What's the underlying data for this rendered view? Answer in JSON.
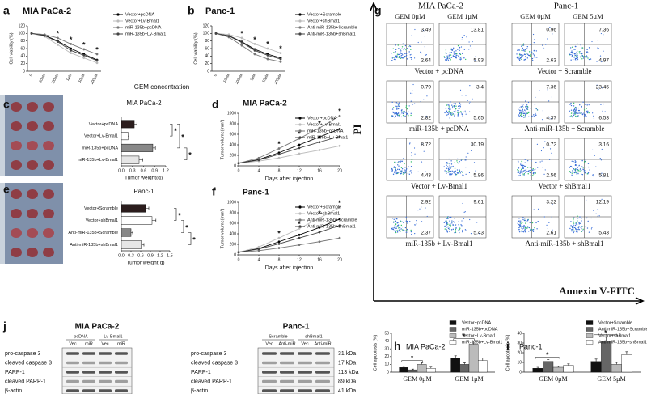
{
  "chart_data": [
    {
      "type": "line",
      "panel": "a",
      "title": "MIA PaCa-2",
      "categories": [
        "0",
        "10nM",
        "100nM",
        "1μM",
        "10μM",
        "100μM"
      ],
      "ylabel": "Cell viability (%)",
      "xlabel": "GEM concentration",
      "ylim": [
        0,
        120
      ],
      "yticks": [
        0,
        20,
        40,
        60,
        80,
        100,
        120
      ],
      "series": [
        {
          "name": "Vector+pcDNA",
          "color": "#000000",
          "values": [
            100,
            95,
            80,
            60,
            45,
            30
          ]
        },
        {
          "name": "Vector+Lv-Bmal1",
          "color": "#bbbbbb",
          "values": [
            100,
            92,
            70,
            48,
            35,
            22
          ]
        },
        {
          "name": "miR-135b+pcDNA",
          "color": "#777777",
          "values": [
            100,
            97,
            88,
            72,
            58,
            45
          ]
        },
        {
          "name": "miR-135b+Lv-Bmal1",
          "color": "#444444",
          "values": [
            100,
            94,
            78,
            55,
            42,
            28
          ]
        }
      ],
      "significance": [
        null,
        null,
        "*",
        "*",
        "*",
        "*"
      ]
    },
    {
      "type": "line",
      "panel": "b",
      "title": "Panc-1",
      "categories": [
        "0",
        "10nM",
        "100nM",
        "1μM",
        "10μM",
        "100μM"
      ],
      "ylabel": "Cell viability (%)",
      "ylim": [
        0,
        120
      ],
      "yticks": [
        0,
        20,
        40,
        60,
        80,
        100,
        120
      ],
      "series": [
        {
          "name": "Vector+Scramble",
          "color": "#000000",
          "values": [
            100,
            94,
            78,
            58,
            45,
            35
          ]
        },
        {
          "name": "Vector+shBmal1",
          "color": "#bbbbbb",
          "values": [
            100,
            97,
            88,
            72,
            60,
            48
          ]
        },
        {
          "name": "Anti-miR-135b+Scramble",
          "color": "#777777",
          "values": [
            100,
            90,
            68,
            45,
            32,
            25
          ]
        },
        {
          "name": "Anti-miR-135b+shBmal1",
          "color": "#444444",
          "values": [
            100,
            93,
            76,
            55,
            42,
            32
          ]
        }
      ],
      "significance": [
        null,
        null,
        "*",
        "*",
        "*",
        "*"
      ]
    },
    {
      "type": "hbar",
      "panel": "c",
      "title": "MIA PaCa-2",
      "categories": [
        "Vector+pcDNA",
        "Vector+Lv-Bmal1",
        "miR-135b+pcDNA",
        "miR-135b+Lv-Bmal1"
      ],
      "values": [
        0.35,
        0.18,
        0.85,
        0.48
      ],
      "errors": [
        0.07,
        0.03,
        0.07,
        0.1
      ],
      "colors": [
        "#2b1d1d",
        "#ffffff",
        "#888888",
        "#e6e6e6"
      ],
      "xlim": [
        0,
        1.2
      ],
      "xticks": [
        {
          "value": 0,
          "label": "0.0"
        },
        0.3,
        0.6,
        0.9,
        1.2
      ],
      "xlabel": "Tumor weight(g)",
      "significance": [
        "*",
        "*",
        "*"
      ]
    },
    {
      "type": "line",
      "panel": "d",
      "title": "MIA PaCa-2",
      "x": [
        0,
        4,
        8,
        12,
        16,
        20
      ],
      "xlim": [
        0,
        20
      ],
      "xticks": [
        0,
        4,
        8,
        12,
        16,
        20
      ],
      "ylim": [
        0,
        1000
      ],
      "yticks": [
        0,
        200,
        400,
        600,
        800,
        1000
      ],
      "ylabel": "Tumor volume(mm³)",
      "xlabel": "Days after injection",
      "series": [
        {
          "name": "Vector+pcDNA",
          "color": "#000000",
          "values": [
            50,
            120,
            250,
            400,
            550,
            700
          ]
        },
        {
          "name": "Vector+Lv-Bmal1",
          "color": "#bbbbbb",
          "values": [
            50,
            90,
            150,
            230,
            300,
            380
          ]
        },
        {
          "name": "miR-135b+pcDNA",
          "color": "#777777",
          "values": [
            50,
            150,
            330,
            520,
            720,
            950
          ]
        },
        {
          "name": "miR-135b+Lv-Bmal1",
          "color": "#444444",
          "values": [
            50,
            110,
            220,
            340,
            450,
            560
          ]
        }
      ],
      "significance": [
        null,
        null,
        "*",
        "*",
        "*",
        "*"
      ]
    },
    {
      "type": "hbar",
      "panel": "e",
      "title": "Panc-1",
      "categories": [
        "Vector+Scramble",
        "Vector+shBmal1",
        "Anti-miR-135b+Scramble",
        "Anti-miR-135b+shBmal1"
      ],
      "values": [
        0.75,
        0.95,
        0.3,
        0.62
      ],
      "errors": [
        0.1,
        0.12,
        0.05,
        0.08
      ],
      "colors": [
        "#2b1d1d",
        "#ffffff",
        "#888888",
        "#e6e6e6"
      ],
      "xlim": [
        0,
        1.5
      ],
      "xticks": [
        {
          "value": 0,
          "label": "0.0"
        },
        0.3,
        0.6,
        0.9,
        1.2,
        1.5
      ],
      "xlabel": "Tumor weight(g)",
      "significance": [
        "*",
        "*",
        "*"
      ]
    },
    {
      "type": "line",
      "panel": "f",
      "title": "Panc-1",
      "x": [
        0,
        4,
        8,
        12,
        16,
        20
      ],
      "xlim": [
        0,
        20
      ],
      "xticks": [
        0,
        4,
        8,
        12,
        16,
        20
      ],
      "ylim": [
        0,
        1000
      ],
      "yticks": [
        0,
        200,
        400,
        600,
        800,
        1000
      ],
      "ylabel": "Tumor volume(mm³)",
      "xlabel": "Days after injection",
      "series": [
        {
          "name": "Vector+Scramble",
          "color": "#000000",
          "values": [
            50,
            120,
            250,
            380,
            520,
            680
          ]
        },
        {
          "name": "Vector+shBmal1",
          "color": "#bbbbbb",
          "values": [
            50,
            150,
            320,
            500,
            700,
            900
          ]
        },
        {
          "name": "Anti-miR-135b+Scramble",
          "color": "#777777",
          "values": [
            50,
            80,
            130,
            190,
            250,
            320
          ]
        },
        {
          "name": "Anti-miR-135b+shBmal1",
          "color": "#444444",
          "values": [
            50,
            110,
            210,
            320,
            430,
            560
          ]
        }
      ],
      "significance": [
        null,
        null,
        "*",
        "*",
        "*",
        "*"
      ]
    },
    {
      "type": "grouped",
      "panel": "h",
      "title": "MIA PaCa-2",
      "categories": [
        "GEM 0μM",
        "GEM 1μM"
      ],
      "ylabel": "Cell apoptosis (%)",
      "ylim": [
        0,
        50
      ],
      "yticks": [
        0,
        10,
        20,
        30,
        40,
        50
      ],
      "series": [
        {
          "name": "Vector+pcDNA",
          "color": "#111111",
          "values": [
            6,
            18
          ],
          "errors": [
            1.5,
            3
          ]
        },
        {
          "name": "miR-135b+pcDNA",
          "color": "#666666",
          "values": [
            3,
            10
          ],
          "errors": [
            1,
            2
          ]
        },
        {
          "name": "Vector+Lv-Bmal1",
          "color": "#bbbbbb",
          "values": [
            10,
            36
          ],
          "errors": [
            2,
            4
          ]
        },
        {
          "name": "miR-135b+Lv-Bmal1",
          "color": "#ffffff",
          "values": [
            5,
            15
          ],
          "errors": [
            1.5,
            3
          ]
        }
      ],
      "significance": [
        "*",
        "*"
      ]
    },
    {
      "type": "grouped",
      "panel": "i",
      "title": "Panc-1",
      "categories": [
        "GEM 0μM",
        "GEM 5μM"
      ],
      "ylabel": "Cell apoptosis (%)",
      "ylim": [
        0,
        40
      ],
      "yticks": [
        0,
        10,
        20,
        30,
        40
      ],
      "series": [
        {
          "name": "Vector+Scramble",
          "color": "#111111",
          "values": [
            4,
            11
          ],
          "errors": [
            1,
            2.5
          ]
        },
        {
          "name": "Anti-miR-135b+Scramble",
          "color": "#666666",
          "values": [
            11,
            32
          ],
          "errors": [
            2,
            4
          ]
        },
        {
          "name": "Vector+shBmal1",
          "color": "#bbbbbb",
          "values": [
            5,
            8
          ],
          "errors": [
            1,
            2
          ]
        },
        {
          "name": "Anti-miR-135b+shBmal1",
          "color": "#ffffff",
          "values": [
            7,
            18
          ],
          "errors": [
            1.5,
            3
          ]
        }
      ],
      "significance": [
        "*",
        "*"
      ]
    }
  ],
  "flow": {
    "panel": "g",
    "groups": [
      "MIA PaCa-2",
      "Panc-1"
    ],
    "columns": [
      "GEM 0μM",
      "GEM 1μM",
      "GEM 0μM",
      "GEM 5μM"
    ],
    "y_axis": "PI",
    "x_axis": "Annexin V-FITC",
    "rows": [
      {
        "captions": [
          "Vector + pcDNA",
          "Vector + Scramble"
        ],
        "plots": [
          [
            3.49,
            2.64
          ],
          [
            13.81,
            5.93
          ],
          [
            0.96,
            2.63
          ],
          [
            7.36,
            4.97
          ]
        ]
      },
      {
        "captions": [
          "miR-135b + pcDNA",
          "Anti-miR-135b + Scramble"
        ],
        "plots": [
          [
            0.79,
            2.82
          ],
          [
            3.4,
            5.65
          ],
          [
            7.36,
            4.37
          ],
          [
            23.45,
            6.53
          ]
        ]
      },
      {
        "captions": [
          "Vector + Lv-Bmal1",
          "Vector + shBmal1"
        ],
        "plots": [
          [
            8.72,
            4.43
          ],
          [
            30.19,
            5.86
          ],
          [
            0.72,
            2.56
          ],
          [
            3.16,
            5.81
          ]
        ]
      },
      {
        "captions": [
          "miR-135b + Lv-Bmal1",
          "Anti-miR-135b + shBmal1"
        ],
        "plots": [
          [
            2.92,
            2.37
          ],
          [
            9.61,
            5.43
          ],
          [
            3.22,
            2.61
          ],
          [
            12.19,
            5.43
          ]
        ]
      }
    ]
  },
  "western": {
    "panel": "j",
    "blots": [
      {
        "title": "MIA PaCa-2",
        "groups": [
          "pcDNA",
          "Lv-Bmal1"
        ],
        "lanes": [
          "Vec",
          "miR",
          "Vec",
          "miR"
        ],
        "rows": [
          "pro-caspase 3",
          "cleaved caspase 3",
          "PARP-1",
          "cleaved PARP-1",
          "β-actin"
        ]
      },
      {
        "title": "Panc-1",
        "groups": [
          "Scramble",
          "shBmal1"
        ],
        "lanes": [
          "Vec",
          "Anti-miR",
          "Vec",
          "Anti-miR"
        ],
        "rows": [
          "pro-caspase 3",
          "cleaved caspase 3",
          "PARP-1",
          "cleaved PARP-1",
          "β-actin"
        ],
        "sizes": [
          "31 kDa",
          "17 kDa",
          "113 kDa",
          "89 kDa",
          "41 kDa"
        ]
      }
    ]
  }
}
